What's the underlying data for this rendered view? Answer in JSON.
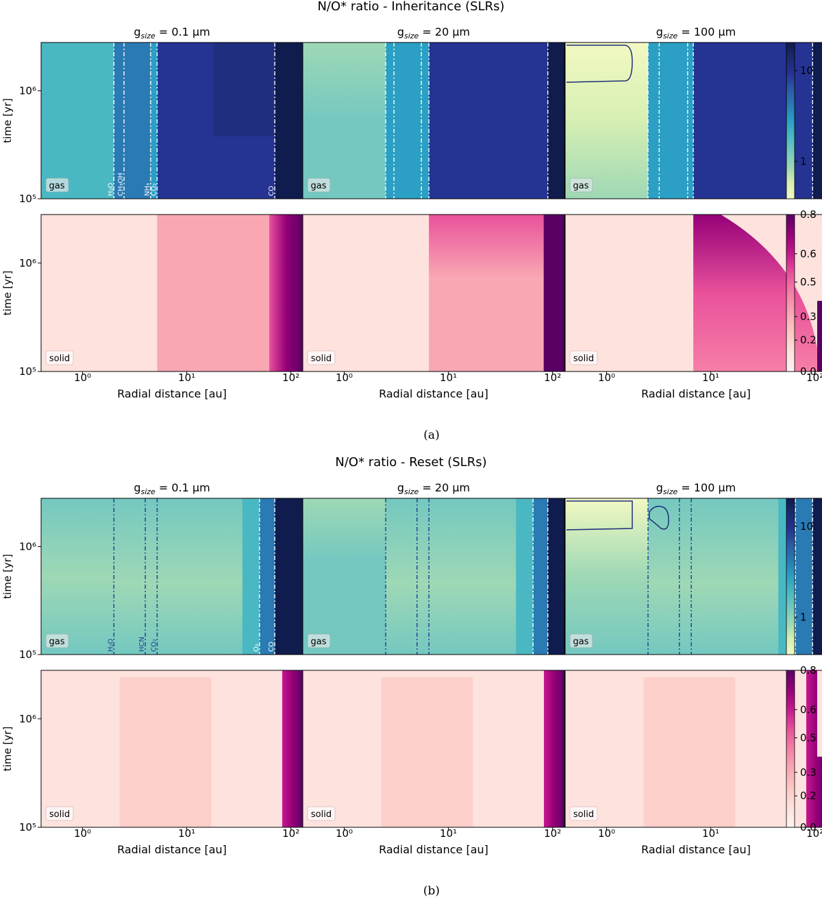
{
  "figures": [
    {
      "id": "a",
      "title": "N/O* ratio - Inheritance (SLRs)",
      "caption": "(a)",
      "panel_titles": [
        "g_size = 0.1 μm",
        "g_size = 20 μm",
        "g_size = 100 μm"
      ],
      "gas_snowlines": [
        {
          "labels": [
            "H₂O",
            "CH₃OH",
            "NH₃",
            "CO₂",
            "CO"
          ],
          "positions_au": [
            2.0,
            2.5,
            4.5,
            5.2,
            70
          ]
        },
        {
          "labels": [],
          "positions_au": [
            2.5,
            3.0,
            5.5,
            6.5,
            90
          ]
        },
        {
          "labels": [],
          "positions_au": [
            2.5,
            3.2,
            6.0,
            6.8,
            95
          ]
        }
      ],
      "gas_colorbar": {
        "ticks": [
          "1",
          "10"
        ],
        "scale": "log"
      },
      "solid_colorbar": {
        "ticks": [
          "0.0",
          "0.2",
          "0.3",
          "0.5",
          "0.6",
          "0.8"
        ],
        "range": [
          0,
          0.8
        ]
      }
    },
    {
      "id": "b",
      "title": "N/O* ratio - Reset (SLRs)",
      "caption": "(b)",
      "panel_titles": [
        "g_size = 0.1 μm",
        "g_size = 20 μm",
        "g_size = 100 μm"
      ],
      "gas_snowlines": [
        {
          "labels": [
            "H₂O",
            "HCN",
            "CO₂",
            "O₂",
            "CO"
          ],
          "positions_au": [
            2.0,
            4.0,
            5.2,
            50,
            70
          ]
        },
        {
          "labels": [],
          "positions_au": [
            2.5,
            5.0,
            6.5,
            65,
            90
          ]
        },
        {
          "labels": [],
          "positions_au": [
            2.5,
            5.0,
            6.5,
            65,
            95
          ]
        }
      ],
      "gas_colorbar": {
        "ticks": [
          "1",
          "10"
        ],
        "scale": "log"
      },
      "solid_colorbar": {
        "ticks": [
          "0.0",
          "0.2",
          "0.3",
          "0.5",
          "0.6",
          "0.8"
        ],
        "range": [
          0,
          0.8
        ]
      }
    }
  ],
  "labels": {
    "gas": "gas",
    "solid": "solid",
    "y_axis": "time [yr]",
    "x_axis": "Radial distance [au]",
    "y_ticks": [
      "10⁵",
      "10⁶"
    ],
    "x_ticks": [
      "10⁰",
      "10¹",
      "10²"
    ]
  },
  "chart_data": [
    {
      "type": "heatmap",
      "title": "N/O* ratio - Inheritance (SLRs)",
      "xlabel": "Radial distance [au]",
      "ylabel": "time [yr]",
      "x_scale": "log",
      "y_scale": "log",
      "xlim": [
        0.4,
        130
      ],
      "ylim": [
        100000,
        2800000
      ],
      "panels": [
        "0.1 μm gas",
        "20 μm gas",
        "100 μm gas",
        "0.1 μm solid",
        "20 μm solid",
        "100 μm solid"
      ],
      "colorbar_gas": {
        "scale": "log",
        "ticks": [
          1,
          10
        ]
      },
      "colorbar_solid": {
        "range": [
          0,
          0.8
        ],
        "ticks": [
          0.0,
          0.2,
          0.3,
          0.5,
          0.6,
          0.8
        ]
      }
    },
    {
      "type": "heatmap",
      "title": "N/O* ratio - Reset (SLRs)",
      "xlabel": "Radial distance [au]",
      "ylabel": "time [yr]",
      "x_scale": "log",
      "y_scale": "log",
      "xlim": [
        0.4,
        130
      ],
      "ylim": [
        100000,
        2800000
      ],
      "panels": [
        "0.1 μm gas",
        "20 μm gas",
        "100 μm gas",
        "0.1 μm solid",
        "20 μm solid",
        "100 μm solid"
      ],
      "colorbar_gas": {
        "scale": "log",
        "ticks": [
          1,
          10
        ]
      },
      "colorbar_solid": {
        "range": [
          0,
          0.8
        ],
        "ticks": [
          0.0,
          0.2,
          0.3,
          0.5,
          0.6,
          0.8
        ]
      }
    }
  ],
  "colors": {
    "gas_scale": [
      "#f2f9c2",
      "#d6efb3",
      "#9ed8b5",
      "#74c8c0",
      "#4ab8c2",
      "#2b9fc4",
      "#2a7ab4",
      "#2c5aa4",
      "#253393",
      "#1b2a6e",
      "#0f1c4d"
    ],
    "solid_scale": [
      "#fef3f0",
      "#fde2de",
      "#fcc8c2",
      "#f9a7b3",
      "#f57fa7",
      "#e9519b",
      "#c7188e",
      "#950078",
      "#5a0063"
    ],
    "snowline_dark": "#1f3a93",
    "snowline_light": "#ffffff"
  }
}
